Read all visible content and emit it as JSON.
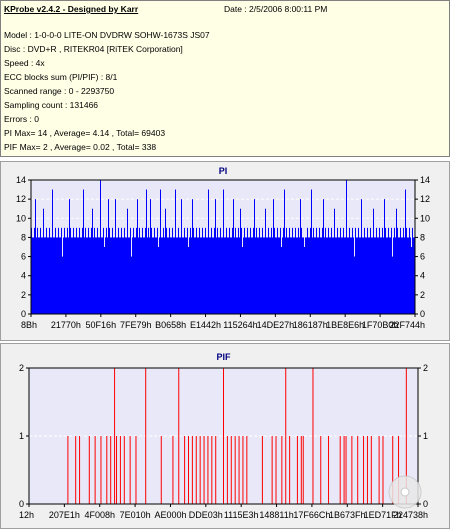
{
  "info": {
    "title": "KProbe v2.4.2 - Designed by Karr",
    "date": "Date : 2/5/2006 8:00:11 PM",
    "lines": [
      "Model : 1-0-0-0 LITE-ON DVDRW SOHW-1673S JS07",
      "Disc : DVD+R , RITEKR04 [RiTEK Corporation]",
      "Speed : 4x",
      "ECC blocks sum (PI/PIF) : 8/1",
      "Scanned range : 0 - 2293750",
      "Sampling count : 131466",
      "Errors : 0",
      "PI Max= 14 , Average= 4.14 , Total= 69403",
      "PIF Max= 2 , Average= 0.02 , Total= 338"
    ]
  },
  "chart_data": [
    {
      "type": "bar",
      "title": "PI",
      "ylim": [
        0,
        14
      ],
      "yticks": [
        0,
        2,
        4,
        6,
        8,
        10,
        12,
        14
      ],
      "xticks": [
        "8Bh",
        "21770h",
        "50F16h",
        "7FE79h",
        "B0658h",
        "E1442h",
        "115264h",
        "14DE27h",
        "186187h",
        "1BE8E6h",
        "1F70B0h",
        "22F744h"
      ],
      "colors": {
        "bars": "#0000ff",
        "plot_bg": "#e8e8f8",
        "grid": "#ffffff"
      },
      "typical_range": [
        8,
        9
      ],
      "dips": [
        {
          "pos": 0.08,
          "v": 6
        },
        {
          "pos": 0.19,
          "v": 7
        },
        {
          "pos": 0.26,
          "v": 6
        },
        {
          "pos": 0.33,
          "v": 7
        },
        {
          "pos": 0.41,
          "v": 7
        },
        {
          "pos": 0.55,
          "v": 7
        },
        {
          "pos": 0.65,
          "v": 7
        },
        {
          "pos": 0.71,
          "v": 7
        },
        {
          "pos": 0.84,
          "v": 6
        },
        {
          "pos": 0.94,
          "v": 6
        },
        {
          "pos": 0.99,
          "v": 7
        }
      ],
      "peaks": [
        {
          "pos": 0.01,
          "v": 12
        },
        {
          "pos": 0.03,
          "v": 11
        },
        {
          "pos": 0.055,
          "v": 13
        },
        {
          "pos": 0.1,
          "v": 12
        },
        {
          "pos": 0.135,
          "v": 13
        },
        {
          "pos": 0.16,
          "v": 11
        },
        {
          "pos": 0.18,
          "v": 14
        },
        {
          "pos": 0.2,
          "v": 12
        },
        {
          "pos": 0.22,
          "v": 12
        },
        {
          "pos": 0.25,
          "v": 11
        },
        {
          "pos": 0.275,
          "v": 12
        },
        {
          "pos": 0.3,
          "v": 13
        },
        {
          "pos": 0.31,
          "v": 12
        },
        {
          "pos": 0.335,
          "v": 13
        },
        {
          "pos": 0.35,
          "v": 11
        },
        {
          "pos": 0.375,
          "v": 13
        },
        {
          "pos": 0.39,
          "v": 12
        },
        {
          "pos": 0.42,
          "v": 12
        },
        {
          "pos": 0.46,
          "v": 13
        },
        {
          "pos": 0.48,
          "v": 12
        },
        {
          "pos": 0.5,
          "v": 13
        },
        {
          "pos": 0.525,
          "v": 12
        },
        {
          "pos": 0.545,
          "v": 11
        },
        {
          "pos": 0.58,
          "v": 12
        },
        {
          "pos": 0.61,
          "v": 11
        },
        {
          "pos": 0.63,
          "v": 12
        },
        {
          "pos": 0.66,
          "v": 13
        },
        {
          "pos": 0.7,
          "v": 12
        },
        {
          "pos": 0.73,
          "v": 13
        },
        {
          "pos": 0.76,
          "v": 12
        },
        {
          "pos": 0.79,
          "v": 11
        },
        {
          "pos": 0.82,
          "v": 14
        },
        {
          "pos": 0.86,
          "v": 12
        },
        {
          "pos": 0.89,
          "v": 11
        },
        {
          "pos": 0.92,
          "v": 12
        },
        {
          "pos": 0.95,
          "v": 11
        },
        {
          "pos": 0.975,
          "v": 13
        }
      ]
    },
    {
      "type": "bar",
      "title": "PIF",
      "ylim": [
        0,
        2
      ],
      "yticks": [
        0,
        1,
        2
      ],
      "xticks": [
        "12h",
        "207E1h",
        "4F008h",
        "7E010h",
        "AE000h",
        "DDE03h",
        "1115E3h",
        "148811h",
        "17F66Ch",
        "1B673Fh",
        "1ED71Fh",
        "224738h"
      ],
      "colors": {
        "bars": "#ff0000",
        "plot_bg": "#e8e8f8",
        "grid": "#ffffff"
      },
      "value_2_at": [
        0.22,
        0.3,
        0.385,
        0.5,
        0.66,
        0.73,
        0.97
      ],
      "value_1_at": [
        0.1,
        0.12,
        0.13,
        0.155,
        0.17,
        0.185,
        0.2,
        0.21,
        0.225,
        0.235,
        0.245,
        0.26,
        0.275,
        0.34,
        0.37,
        0.4,
        0.41,
        0.42,
        0.43,
        0.44,
        0.45,
        0.46,
        0.47,
        0.48,
        0.51,
        0.52,
        0.53,
        0.54,
        0.55,
        0.56,
        0.6,
        0.625,
        0.635,
        0.65,
        0.67,
        0.69,
        0.7,
        0.705,
        0.75,
        0.77,
        0.8,
        0.81,
        0.815,
        0.83,
        0.845,
        0.86,
        0.87,
        0.88,
        0.9,
        0.91,
        0.935,
        0.95
      ]
    }
  ]
}
